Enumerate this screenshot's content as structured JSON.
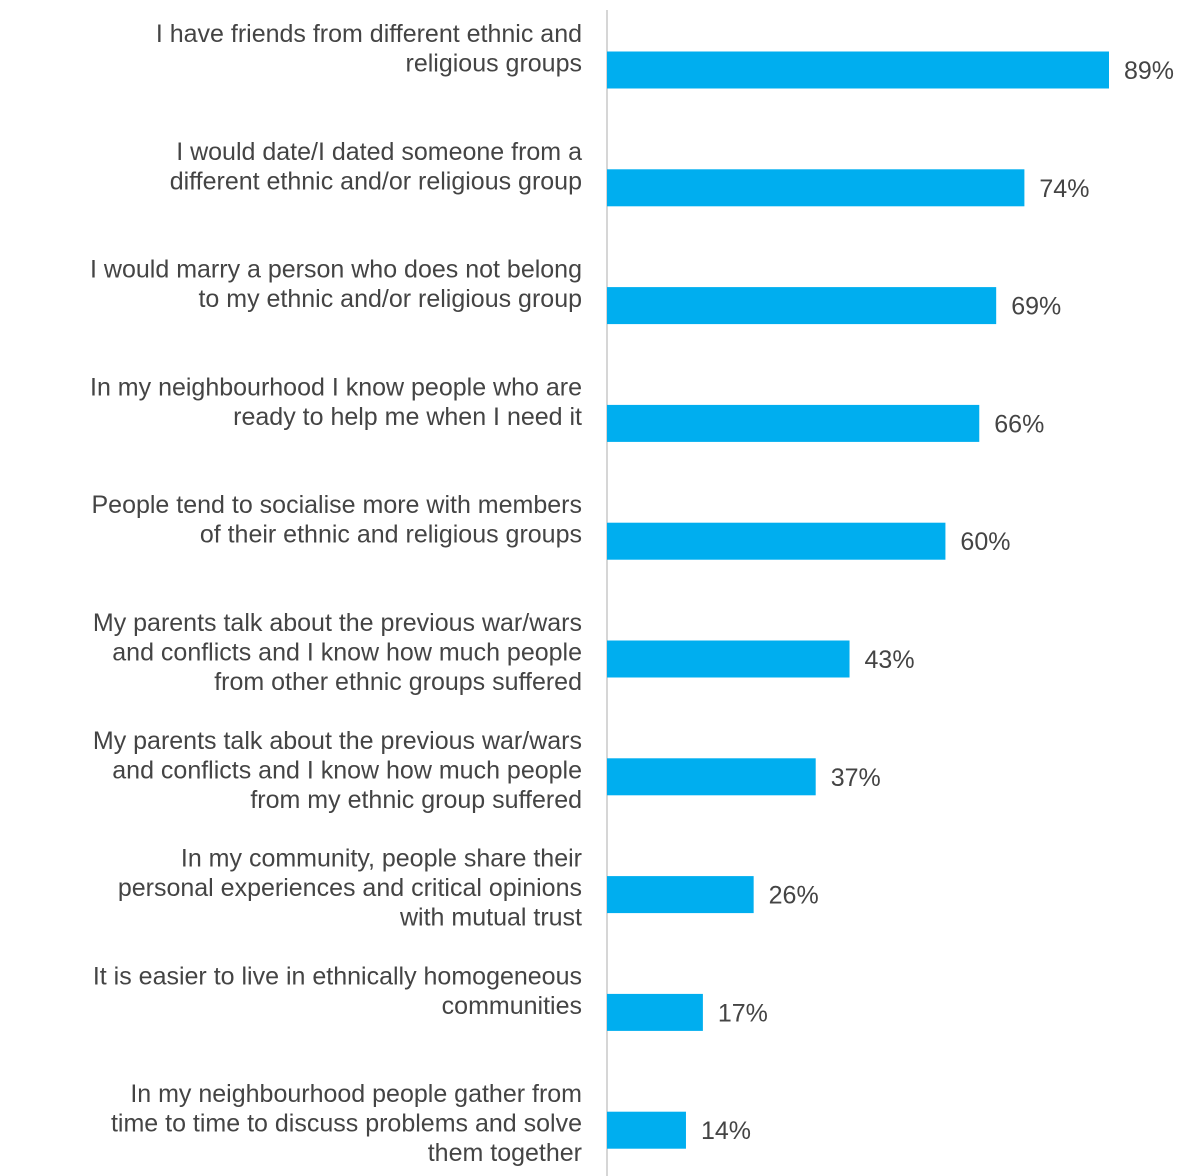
{
  "chart_data": {
    "type": "bar",
    "orientation": "horizontal",
    "categories": [
      [
        "I have friends from different ethnic and",
        "religious groups"
      ],
      [
        "I would date/I dated someone from a",
        "different ethnic and/or religious group"
      ],
      [
        "I would marry a person who does not belong",
        "to my ethnic and/or religious group"
      ],
      [
        "In my neighbourhood I know people who are",
        "ready to help me when I need it"
      ],
      [
        "People tend to socialise more with members",
        "of their ethnic and religious groups"
      ],
      [
        "My parents talk about the previous war/wars",
        "and conflicts and I know how much people",
        "from other ethnic groups suffered"
      ],
      [
        "My parents talk about the previous war/wars",
        "and conflicts and I know how much people",
        "from my ethnic group suffered"
      ],
      [
        "In my community, people share their",
        "personal experiences and critical opinions",
        "with mutual trust"
      ],
      [
        "It is easier to live in ethnically homogeneous",
        "communities"
      ],
      [
        "In my neighbourhood people gather from",
        "time to time to discuss problems and solve",
        "them together"
      ]
    ],
    "values": [
      89,
      74,
      69,
      66,
      60,
      43,
      37,
      26,
      17,
      14
    ],
    "value_labels": [
      "89%",
      "74%",
      "69%",
      "66%",
      "60%",
      "43%",
      "37%",
      "26%",
      "17%",
      "14%"
    ],
    "xlim": [
      0,
      100
    ],
    "bar_color": "#00AEEF",
    "axis_color": "#C8C8C8",
    "text_color": "#444444",
    "grid": false,
    "legend": "none"
  }
}
